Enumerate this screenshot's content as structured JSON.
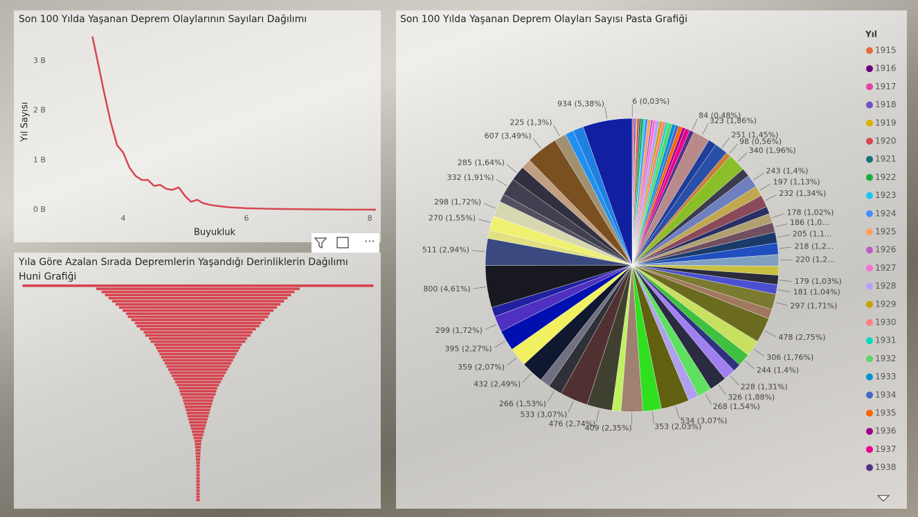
{
  "chart_data": [
    {
      "type": "line",
      "title": "Son 100 Yılda Yaşanan Deprem Olaylarının Sayıları Dağılımı",
      "x_label": "Buyukluk",
      "y_label": "Yıl Sayısı",
      "color": "#d64550",
      "x": [
        3.5,
        3.6,
        3.7,
        3.8,
        3.9,
        4.0,
        4.1,
        4.2,
        4.3,
        4.4,
        4.5,
        4.6,
        4.7,
        4.8,
        4.9,
        5.0,
        5.1,
        5.2,
        5.3,
        5.4,
        5.5,
        5.7,
        6.0,
        6.5,
        7.0,
        7.5,
        8.0,
        8.1
      ],
      "values": [
        3490,
        2900,
        2300,
        1750,
        1300,
        1150,
        850,
        680,
        600,
        600,
        480,
        500,
        420,
        400,
        450,
        280,
        160,
        200,
        130,
        100,
        80,
        50,
        30,
        15,
        8,
        3,
        1,
        0
      ],
      "xlim": [
        3.4,
        8.1
      ],
      "ylim": [
        0,
        3600
      ],
      "xticks": [
        4,
        6,
        8
      ],
      "yticks": [
        {
          "value": 0,
          "label": "0 B"
        },
        {
          "value": 1000,
          "label": "1 B"
        },
        {
          "value": 2000,
          "label": "2 B"
        },
        {
          "value": 3000,
          "label": "3 B"
        }
      ]
    },
    {
      "type": "funnel",
      "title": "Yıla Göre Azalan Sırada Depremlerin Yaşandığı Derinliklerin Dağılımı Huni Grafiği",
      "color": "#d64550",
      "values": [
        100,
        58,
        55,
        53,
        51,
        49,
        47,
        45,
        43,
        41,
        40,
        38,
        36,
        35,
        33,
        31,
        30,
        28,
        27,
        25,
        24,
        23,
        22,
        21,
        20,
        19,
        18,
        17,
        16,
        15,
        14,
        13,
        12,
        11,
        10.5,
        10,
        9,
        8.5,
        8,
        7.5,
        7,
        6.5,
        6,
        5.5,
        5,
        4.5,
        4,
        3.5,
        3,
        2.5,
        2,
        1.8,
        1.6,
        1.5,
        1.4,
        1.3,
        1.2,
        1.1,
        1,
        1,
        1,
        1,
        1,
        1,
        1,
        1,
        1,
        1,
        1,
        1
      ]
    },
    {
      "type": "pie",
      "title": "Son 100 Yılda Yaşanan Deprem Olayları Sayısı Pasta Grafiği",
      "legend_title": "Yıl",
      "legend": "right",
      "categories": [
        "1915",
        "1916",
        "1917",
        "1918",
        "1919",
        "1920",
        "1921",
        "1922",
        "1923",
        "1924",
        "1925",
        "1926",
        "1927",
        "1928",
        "1929",
        "1930",
        "1931",
        "1932",
        "1933",
        "1934",
        "1935",
        "1936",
        "1937",
        "1938",
        null,
        null,
        null,
        null,
        null,
        null,
        null,
        null,
        null,
        null,
        null,
        null,
        null,
        null,
        null,
        null,
        null,
        null,
        null,
        null,
        null,
        null,
        null,
        null,
        null,
        null,
        null,
        null,
        null,
        null,
        null,
        null,
        null,
        null,
        null,
        null,
        null,
        null,
        null,
        null,
        null,
        null,
        null,
        null,
        null,
        null,
        null,
        null,
        null,
        null,
        null,
        null,
        null,
        null,
        null
      ],
      "values": [
        6,
        20,
        15,
        30,
        25,
        40,
        35,
        45,
        30,
        50,
        60,
        40,
        55,
        70,
        50,
        65,
        45,
        80,
        70,
        60,
        75,
        55,
        90,
        84,
        323,
        150,
        251,
        98,
        340,
        160,
        243,
        197,
        232,
        140,
        178,
        186,
        205,
        218,
        220,
        170,
        179,
        181,
        297,
        180,
        478,
        306,
        244,
        150,
        228,
        326,
        268,
        200,
        534,
        353,
        409,
        170,
        476,
        533,
        266,
        190,
        432,
        359,
        395,
        299,
        180,
        800,
        511,
        160,
        270,
        298,
        150,
        332,
        285,
        190,
        607,
        225,
        160,
        200,
        934
      ],
      "value_labels": [
        "6 (0,03%)",
        null,
        null,
        null,
        null,
        null,
        null,
        null,
        null,
        null,
        null,
        null,
        null,
        null,
        null,
        null,
        null,
        null,
        null,
        null,
        null,
        null,
        null,
        "84 (0,48%)",
        "323 (1,86%)",
        null,
        "251 (1,45%)",
        "98 (0,56%)",
        "340 (1,96%)",
        null,
        "243 (1,4%)",
        "197 (1,13%)",
        "232 (1,34%)",
        null,
        "178 (1,02%)",
        "186 (1,0...",
        "205 (1,1...",
        "218 (1,2...",
        "220 (1,2...",
        null,
        "179 (1,03%)",
        "181 (1,04%)",
        "297 (1,71%)",
        null,
        "478 (2,75%)",
        "306 (1,76%)",
        "244 (1,4%)",
        null,
        "228 (1,31%)",
        "326 (1,88%)",
        "268 (1,54%)",
        null,
        "534 (3,07%)",
        "353 (2,03%)",
        "409 (2,35%)",
        null,
        "476 (2,74%)",
        "533 (3,07%)",
        "266 (1,53%)",
        null,
        "432 (2,49%)",
        "359 (2,07%)",
        "395 (2,27%)",
        "299 (1,72%)",
        null,
        "800 (4,61%)",
        "511 (2,94%)",
        null,
        "270 (1,55%)",
        "298 (1,72%)",
        null,
        "332 (1,91%)",
        "285 (1,64%)",
        null,
        "607 (3,49%)",
        "225 (1,3%)",
        null,
        null,
        "934 (5,38%)"
      ],
      "colors": [
        "#e66c37",
        "#6b007b",
        "#e044a7",
        "#744ec2",
        "#d9b300",
        "#d64550",
        "#197278",
        "#1aab40",
        "#15c6f4",
        "#4092ff",
        "#ffa058",
        "#be5dc9",
        "#f472d0",
        "#b5a1ff",
        "#c4a200",
        "#ff8080",
        "#00dbbc",
        "#5bd667",
        "#0091d5",
        "#4668c5",
        "#ff6300",
        "#99008a",
        "#ec008c",
        "#533285",
        "#b88a8a",
        "#1f3d99",
        "#2a4fa8",
        "#c8803a",
        "#8bbf2a",
        "#3b3b4f",
        "#6f7fbf",
        "#c0a850",
        "#8a4a5a",
        "#2a2f66",
        "#b0a070",
        "#705060",
        "#1a3a6a",
        "#2050c0",
        "#80a0c0",
        "#c8c040",
        "#2b2b3b",
        "#4a50d0",
        "#7a7a30",
        "#a07860",
        "#6b6b20",
        "#c8e060",
        "#40c040",
        "#303080",
        "#a080f0",
        "#2a2a40",
        "#60e060",
        "#b0a0f0",
        "#606010",
        "#30e020",
        "#a08070",
        "#c0f060",
        "#404030",
        "#503030",
        "#303038",
        "#707080",
        "#101830",
        "#f0f060",
        "#0010b0",
        "#5030c0",
        "#2020a0",
        "#181820",
        "#3a4a80",
        "#e0e080",
        "#f0f070",
        "#d8d8b0",
        "#505060",
        "#404050",
        "#303040",
        "#c0a080",
        "#7a5020",
        "#a09070",
        "#2090f0",
        "#2080e0",
        "#1020a0"
      ]
    }
  ]
}
